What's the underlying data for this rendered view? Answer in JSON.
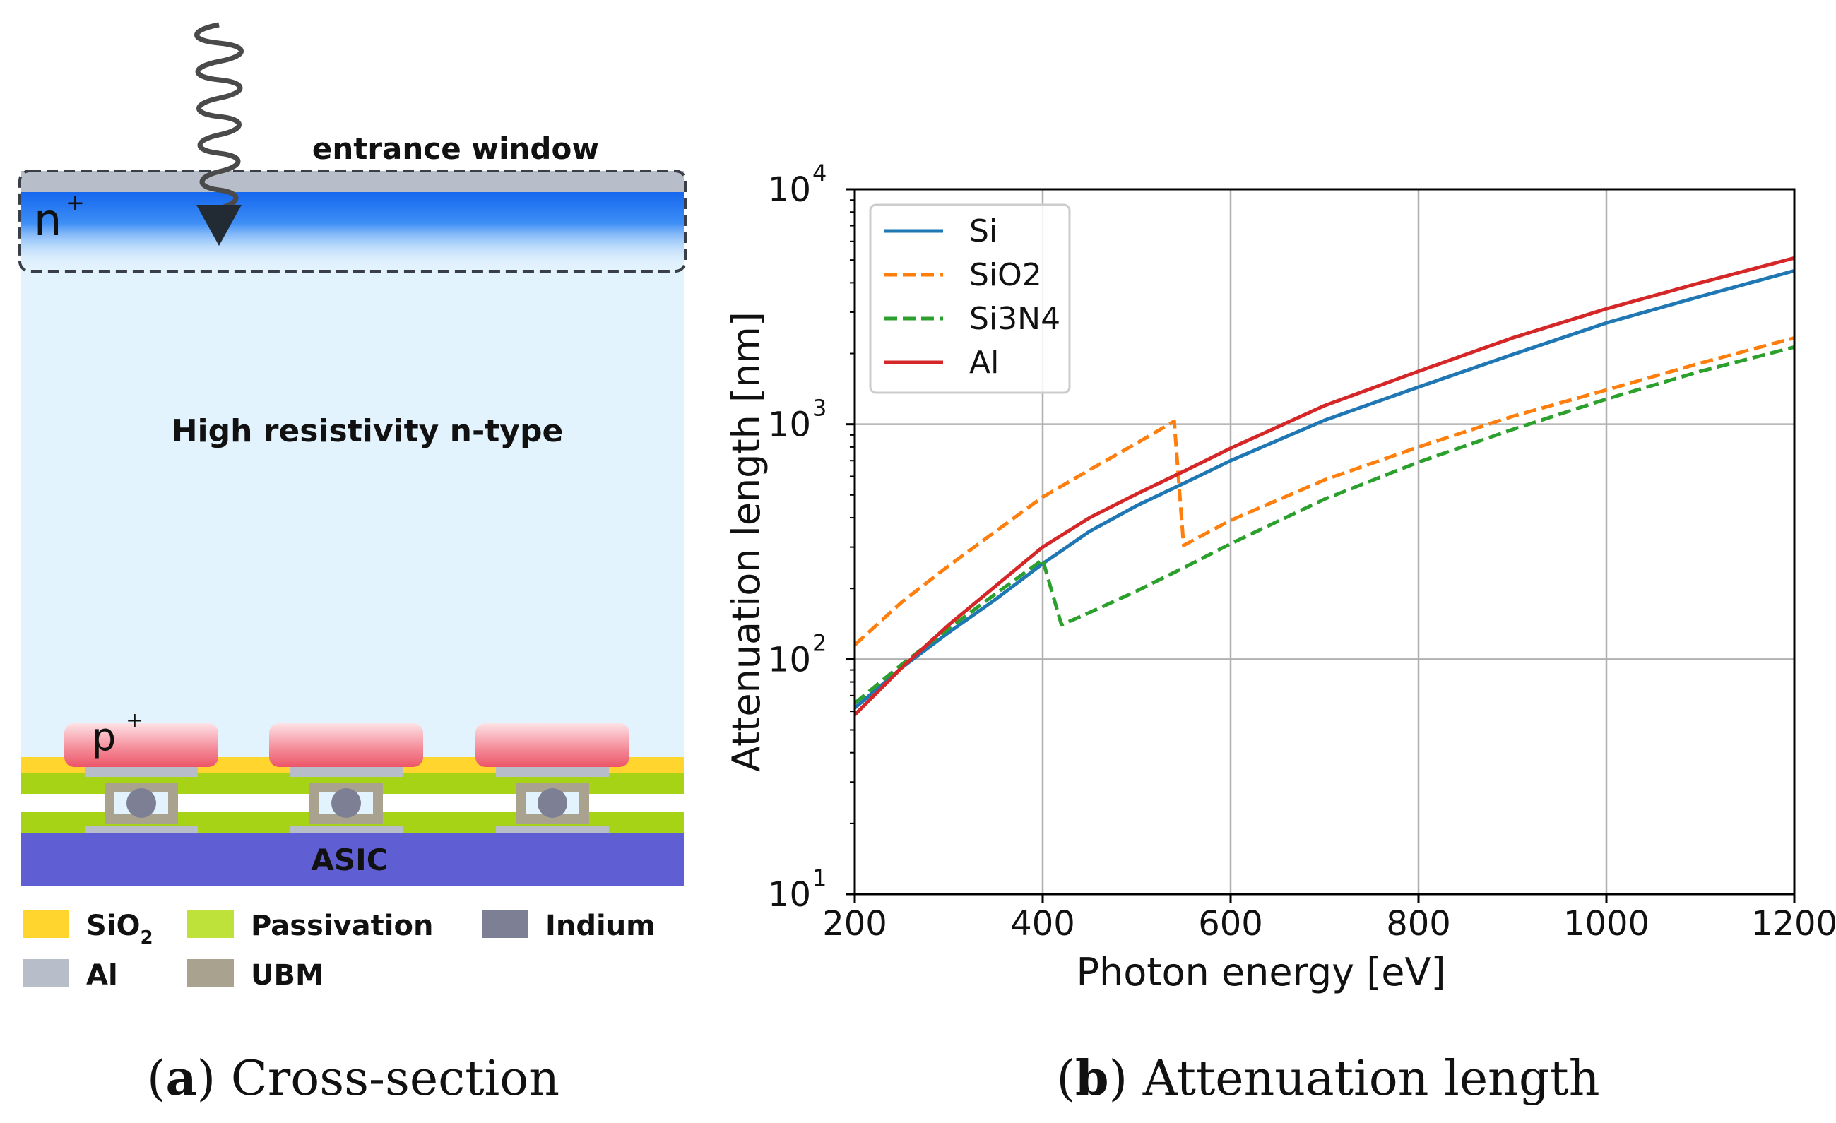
{
  "panel_a": {
    "caption_letter": "a",
    "caption_text": " Cross-section",
    "label_entrance": "entrance window",
    "label_nplus": "n",
    "label_nplus_sup": "+",
    "label_bulk": "High resistivity n-type",
    "label_pplus": "p",
    "label_pplus_sup": "+",
    "label_asic": "ASIC",
    "pixel_count": 3,
    "legend": [
      {
        "key": "sio2",
        "label": "SiO",
        "sub": "2",
        "color": "#ffd52e"
      },
      {
        "key": "passivation",
        "label": "Passivation",
        "color": "#bfe23a"
      },
      {
        "key": "indium",
        "label": "Indium",
        "color": "#7d7f95"
      },
      {
        "key": "al",
        "label": "Al",
        "color": "#b8bec9"
      },
      {
        "key": "ubm",
        "label": "UBM",
        "color": "#a9a28e"
      }
    ],
    "colors": {
      "bulk": "#e3f3fd",
      "asic": "#5f5fd3",
      "window_outline": "#3a3f47",
      "nplus_top": "#1670ee",
      "pplus": "#f06d7f",
      "photon": "#4a4a4a"
    }
  },
  "panel_b": {
    "caption_letter": "b",
    "caption_text": " Attenuation length"
  },
  "chart_data": {
    "type": "line",
    "title": "",
    "xlabel": "Photon energy [eV]",
    "ylabel": "Attenuation length [nm]",
    "xlim": [
      200,
      1200
    ],
    "ylim": [
      10,
      10000
    ],
    "yscale": "log",
    "grid": true,
    "legend_position": "top-left",
    "xticks": [
      200,
      400,
      600,
      800,
      1000,
      1200
    ],
    "yticks": [
      {
        "value": 10,
        "base": "10",
        "exp": "1"
      },
      {
        "value": 100,
        "base": "10",
        "exp": "2"
      },
      {
        "value": 1000,
        "base": "10",
        "exp": "3"
      },
      {
        "value": 10000,
        "base": "10",
        "exp": "4"
      }
    ],
    "series": [
      {
        "name": "Si",
        "color": "#1f77b4",
        "dash": "solid",
        "x": [
          200,
          250,
          300,
          350,
          400,
          450,
          500,
          550,
          600,
          700,
          800,
          900,
          1000,
          1100,
          1200
        ],
        "y": [
          62,
          92,
          130,
          180,
          255,
          350,
          450,
          560,
          700,
          1040,
          1440,
          1980,
          2700,
          3500,
          4500
        ]
      },
      {
        "name": "SiO2",
        "color": "#ff7f0e",
        "dash": "dashed",
        "x": [
          200,
          250,
          300,
          350,
          400,
          450,
          500,
          540,
          550,
          600,
          700,
          800,
          900,
          1000,
          1100,
          1200
        ],
        "y": [
          115,
          175,
          250,
          350,
          490,
          640,
          830,
          1030,
          305,
          390,
          580,
          800,
          1080,
          1400,
          1820,
          2330
        ]
      },
      {
        "name": "Si3N4",
        "color": "#2ca02c",
        "dash": "dashed",
        "x": [
          200,
          250,
          300,
          350,
          400,
          420,
          450,
          500,
          550,
          600,
          700,
          800,
          900,
          1000,
          1100,
          1200
        ],
        "y": [
          65,
          95,
          135,
          190,
          265,
          140,
          158,
          195,
          245,
          310,
          480,
          690,
          950,
          1280,
          1680,
          2130
        ]
      },
      {
        "name": "Al",
        "color": "#d62728",
        "dash": "solid",
        "x": [
          200,
          250,
          300,
          350,
          400,
          450,
          500,
          550,
          600,
          700,
          800,
          900,
          1000,
          1100,
          1200
        ],
        "y": [
          58,
          92,
          140,
          205,
          300,
          400,
          505,
          630,
          790,
          1200,
          1680,
          2330,
          3100,
          4000,
          5100
        ]
      }
    ]
  }
}
